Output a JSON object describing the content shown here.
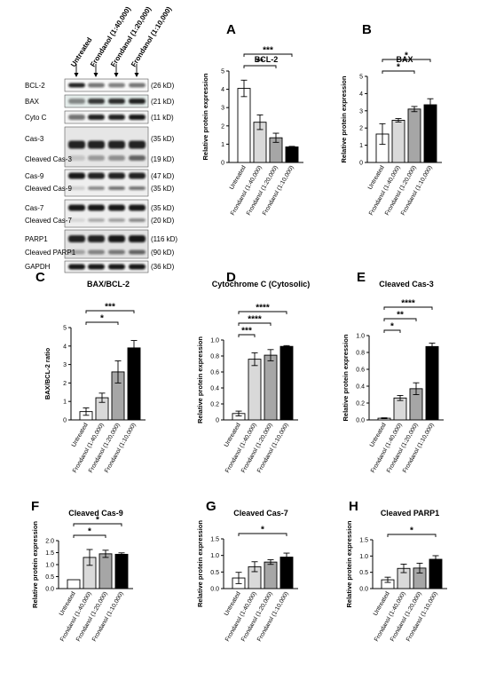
{
  "blot": {
    "columns": [
      "Untreated",
      "Frondanol (1:40,000)",
      "Frondanol (1:20,000)",
      "Frondanol (1:10,000)"
    ],
    "rows": [
      {
        "label": "BCL-2",
        "size": "(26 kD)"
      },
      {
        "label": "BAX",
        "size": "(21 kD)"
      },
      {
        "label": "Cyto C",
        "size": "(11 kD)"
      },
      {
        "label": "Cas-3",
        "size": "(35 kD)"
      },
      {
        "label": "Cleaved Cas-3",
        "size": "(19 kD)"
      },
      {
        "label": "Cas-9",
        "size": "(47 kD)"
      },
      {
        "label": "Cleaved Cas-9",
        "size": "(35 kD)"
      },
      {
        "label": "Cas-7",
        "size": "(35 kD)"
      },
      {
        "label": "Cleaved Cas-7",
        "size": "(20 kD)"
      },
      {
        "label": "PARP1",
        "size": "(116 kD)"
      },
      {
        "label": "Cleaved PARP1",
        "size": "(90 kD)"
      },
      {
        "label": "GAPDH",
        "size": "(36 kD)"
      }
    ]
  },
  "bar_colors": [
    "#ffffff",
    "#d9d9d9",
    "#a6a6a6",
    "#000000"
  ],
  "chart_data": [
    {
      "type": "bar",
      "panel_letter": "A",
      "title": "BCL-2",
      "ylabel": "Relative protein expression",
      "categories": [
        "Untreated",
        "Frondanol (1:40,000)",
        "Frondanol (1:20,000)",
        "Frondanol (1:10,000)"
      ],
      "values": [
        4.05,
        2.2,
        1.35,
        0.85
      ],
      "errors": [
        0.45,
        0.4,
        0.25,
        0.03
      ],
      "ylim": [
        0,
        5
      ],
      "yticks": [
        "0",
        "1",
        "2",
        "3",
        "4",
        "5"
      ],
      "significance": [
        {
          "from": 0,
          "to": 3,
          "label": "***"
        },
        {
          "from": 0,
          "to": 2,
          "label": "**"
        }
      ]
    },
    {
      "type": "bar",
      "panel_letter": "B",
      "title": "BAX",
      "ylabel": "Relative protein expression",
      "categories": [
        "Untreated",
        "Frondanol (1:40,000)",
        "Frondanol (1:20,000)",
        "Frondanol (1:10,000)"
      ],
      "values": [
        1.65,
        2.45,
        3.1,
        3.35
      ],
      "errors": [
        0.6,
        0.1,
        0.15,
        0.35
      ],
      "ylim": [
        0,
        5
      ],
      "yticks": [
        "0",
        "1",
        "2",
        "3",
        "4",
        "5"
      ],
      "significance": [
        {
          "from": 0,
          "to": 3,
          "label": "*"
        },
        {
          "from": 0,
          "to": 2,
          "label": "*"
        }
      ]
    },
    {
      "type": "bar",
      "panel_letter": "C",
      "title": "BAX/BCL-2",
      "ylabel": "BAX/BCL-2 ratio",
      "categories": [
        "Untreated",
        "Frondanol (1:40,000)",
        "Frondanol (1:20,000)",
        "Frondanol (1:10,000)"
      ],
      "values": [
        0.45,
        1.2,
        2.6,
        3.9
      ],
      "errors": [
        0.2,
        0.25,
        0.6,
        0.4
      ],
      "ylim": [
        0,
        5
      ],
      "yticks": [
        "0",
        "1",
        "2",
        "3",
        "4",
        "5"
      ],
      "significance": [
        {
          "from": 0,
          "to": 3,
          "label": "***"
        },
        {
          "from": 0,
          "to": 2,
          "label": "*"
        }
      ]
    },
    {
      "type": "bar",
      "panel_letter": "D",
      "title": "Cytochrome C (Cytosolic)",
      "ylabel": "Relative protein expression",
      "categories": [
        "Untreated",
        "Frondanol (1:40,000)",
        "Frondanol (1:20,000)",
        "Frondanol (1:10,000)"
      ],
      "values": [
        0.08,
        0.76,
        0.81,
        0.92
      ],
      "errors": [
        0.03,
        0.08,
        0.07,
        0.01
      ],
      "ylim": [
        0,
        1.0
      ],
      "yticks": [
        "0",
        "0.2",
        "0.4",
        "0.6",
        "0.8",
        "1.0"
      ],
      "significance": [
        {
          "from": 0,
          "to": 3,
          "label": "****"
        },
        {
          "from": 0,
          "to": 2,
          "label": "****"
        },
        {
          "from": 0,
          "to": 1,
          "label": "***"
        }
      ]
    },
    {
      "type": "bar",
      "panel_letter": "E",
      "title": "Cleaved  Cas-3",
      "ylabel": "Relative protein expression",
      "categories": [
        "Untreated",
        "Frondanol (1:40,000)",
        "Frondanol (1:20,000)",
        "Frondanol (1:10,000)"
      ],
      "values": [
        0.02,
        0.26,
        0.37,
        0.87
      ],
      "errors": [
        0.005,
        0.03,
        0.07,
        0.04
      ],
      "ylim": [
        0,
        1.0
      ],
      "yticks": [
        "0.0",
        "0.2",
        "0.4",
        "0.6",
        "0.8",
        "1.0"
      ],
      "significance": [
        {
          "from": 0,
          "to": 3,
          "label": "****"
        },
        {
          "from": 0,
          "to": 2,
          "label": "**"
        },
        {
          "from": 0,
          "to": 1,
          "label": "*"
        }
      ]
    },
    {
      "type": "bar",
      "panel_letter": "F",
      "title": "Cleaved  Cas-9",
      "ylabel": "Relative protein expression",
      "categories": [
        "Untreated",
        "Frondanol (1:40,000)",
        "Frondanol (1:20,000)",
        "Frondanol (1:10,000)"
      ],
      "values": [
        0.37,
        1.3,
        1.45,
        1.43
      ],
      "errors": [
        0,
        0.33,
        0.15,
        0.06
      ],
      "ylim": [
        0,
        2.0
      ],
      "yticks": [
        "0.0",
        "0.5",
        "1.0",
        "1.5",
        "2.0"
      ],
      "significance": [
        {
          "from": 0,
          "to": 3,
          "label": "*"
        },
        {
          "from": 0,
          "to": 2,
          "label": "*"
        }
      ]
    },
    {
      "type": "bar",
      "panel_letter": "G",
      "title": "Cleaved Cas-7",
      "ylabel": "Relative protein expression",
      "categories": [
        "Untreated",
        "Frondanol (1:40,000)",
        "Frondanol (1:20,000)",
        "Frondanol (1:10,000)"
      ],
      "values": [
        0.32,
        0.66,
        0.8,
        0.95
      ],
      "errors": [
        0.17,
        0.15,
        0.07,
        0.12
      ],
      "ylim": [
        0,
        1.5
      ],
      "yticks": [
        "0.0",
        "0.5",
        "1.0",
        "1.5"
      ],
      "significance": [
        {
          "from": 0,
          "to": 3,
          "label": "*"
        }
      ]
    },
    {
      "type": "bar",
      "panel_letter": "H",
      "title": "Cleaved PARP1",
      "ylabel": "Relative protein expression",
      "categories": [
        "Untreated",
        "Frondanol (1:40,000)",
        "Frondanol (1:20,000)",
        "Frondanol (1:10,000)"
      ],
      "values": [
        0.27,
        0.62,
        0.63,
        0.9
      ],
      "errors": [
        0.08,
        0.13,
        0.15,
        0.11
      ],
      "ylim": [
        0,
        1.5
      ],
      "yticks": [
        "0.0",
        "0.5",
        "1.0",
        "1.5"
      ],
      "significance": [
        {
          "from": 0,
          "to": 3,
          "label": "*"
        }
      ]
    }
  ]
}
